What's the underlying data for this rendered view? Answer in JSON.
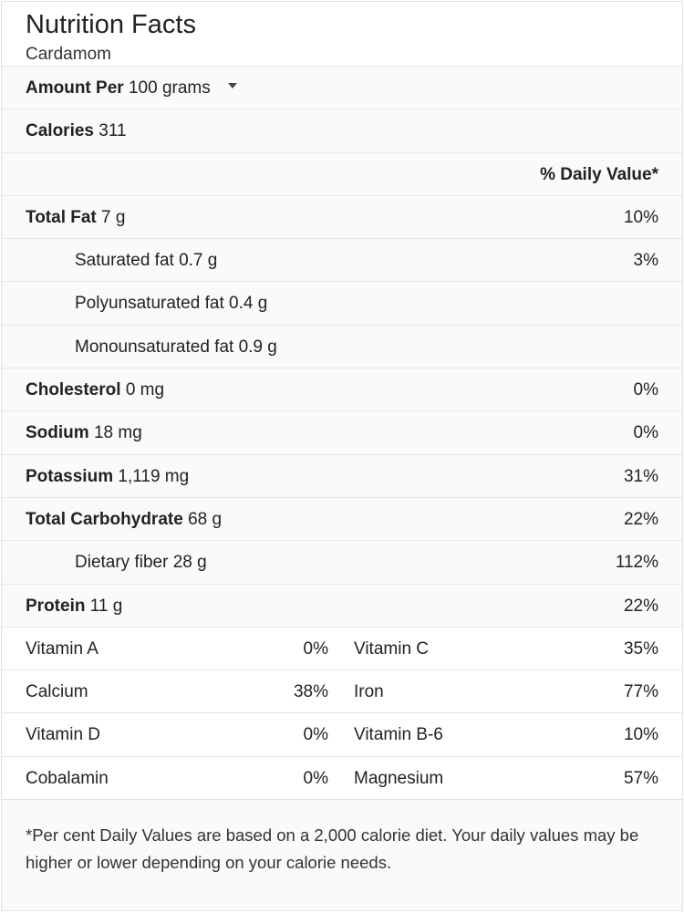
{
  "header": {
    "title": "Nutrition Facts",
    "subtitle": "Cardamom"
  },
  "amount_per": {
    "label": "Amount Per",
    "value": "100 grams"
  },
  "calories": {
    "label": "Calories",
    "value": "311"
  },
  "daily_value_header": "% Daily Value*",
  "nutrients": [
    {
      "label": "Total Fat",
      "amount": "7 g",
      "pct": "10%"
    },
    {
      "label": "Saturated fat",
      "amount": "0.7 g",
      "pct": "3%"
    },
    {
      "label": "Polyunsaturated fat",
      "amount": "0.4 g",
      "pct": ""
    },
    {
      "label": "Monounsaturated fat",
      "amount": "0.9 g",
      "pct": ""
    },
    {
      "label": "Cholesterol",
      "amount": "0 mg",
      "pct": "0%"
    },
    {
      "label": "Sodium",
      "amount": "18 mg",
      "pct": "0%"
    },
    {
      "label": "Potassium",
      "amount": "1,119 mg",
      "pct": "31%"
    },
    {
      "label": "Total Carbohydrate",
      "amount": "68 g",
      "pct": "22%"
    },
    {
      "label": "Dietary fiber",
      "amount": "28 g",
      "pct": "112%"
    },
    {
      "label": "Protein",
      "amount": "11 g",
      "pct": "22%"
    }
  ],
  "vitamins": [
    {
      "left_name": "Vitamin A",
      "left_pct": "0%",
      "right_name": "Vitamin C",
      "right_pct": "35%"
    },
    {
      "left_name": "Calcium",
      "left_pct": "38%",
      "right_name": "Iron",
      "right_pct": "77%"
    },
    {
      "left_name": "Vitamin D",
      "left_pct": "0%",
      "right_name": "Vitamin B-6",
      "right_pct": "10%"
    },
    {
      "left_name": "Cobalamin",
      "left_pct": "0%",
      "right_name": "Magnesium",
      "right_pct": "57%"
    }
  ],
  "footnote": "*Per cent Daily Values are based on a 2,000 calorie diet. Your daily values may be higher or lower depending on your calorie needs."
}
